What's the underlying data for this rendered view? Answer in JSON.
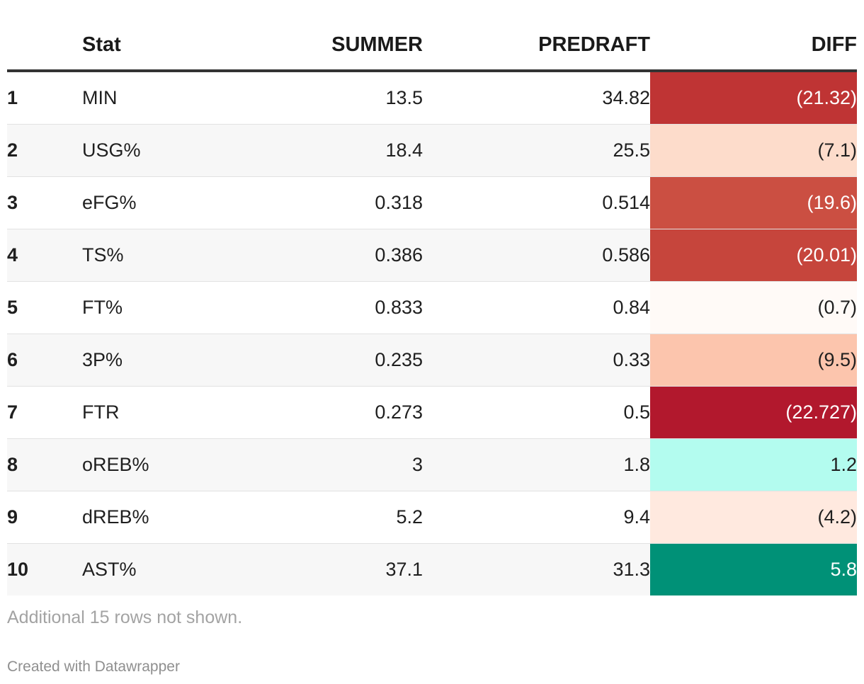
{
  "chart_data": {
    "type": "table",
    "columns": [
      "",
      "Stat",
      "SUMMER",
      "PREDRAFT",
      "DIFF"
    ],
    "rows": [
      {
        "rank": "1",
        "stat": "MIN",
        "summer": "13.5",
        "predraft": "34.82",
        "diff": "(21.32)",
        "diff_value": -21.32,
        "diff_color": "#bf3434"
      },
      {
        "rank": "2",
        "stat": "USG%",
        "summer": "18.4",
        "predraft": "25.5",
        "diff": "(7.1)",
        "diff_value": -7.1,
        "diff_color": "#fddccb"
      },
      {
        "rank": "3",
        "stat": "eFG%",
        "summer": "0.318",
        "predraft": "0.514",
        "diff": "(19.6)",
        "diff_value": -19.6,
        "diff_color": "#cb4f42"
      },
      {
        "rank": "4",
        "stat": "TS%",
        "summer": "0.386",
        "predraft": "0.586",
        "diff": "(20.01)",
        "diff_value": -20.01,
        "diff_color": "#c6453c"
      },
      {
        "rank": "5",
        "stat": "FT%",
        "summer": "0.833",
        "predraft": "0.84",
        "diff": "(0.7)",
        "diff_value": -0.7,
        "diff_color": "#fffaf7"
      },
      {
        "rank": "6",
        "stat": "3P%",
        "summer": "0.235",
        "predraft": "0.33",
        "diff": "(9.5)",
        "diff_value": -9.5,
        "diff_color": "#fcc5ad"
      },
      {
        "rank": "7",
        "stat": "FTR",
        "summer": "0.273",
        "predraft": "0.5",
        "diff": "(22.727)",
        "diff_value": -22.727,
        "diff_color": "#b2182d"
      },
      {
        "rank": "8",
        "stat": "oREB%",
        "summer": "3",
        "predraft": "1.8",
        "diff": "1.2",
        "diff_value": 1.2,
        "diff_color": "#b3fcef"
      },
      {
        "rank": "9",
        "stat": "dREB%",
        "summer": "5.2",
        "predraft": "9.4",
        "diff": "(4.2)",
        "diff_value": -4.2,
        "diff_color": "#ffe9df"
      },
      {
        "rank": "10",
        "stat": "AST%",
        "summer": "37.1",
        "predraft": "31.3",
        "diff": "5.8",
        "diff_value": 5.8,
        "diff_color": "#009177"
      }
    ]
  },
  "footer": {
    "note": "Additional 15 rows not shown.",
    "credit": "Created with Datawrapper"
  }
}
